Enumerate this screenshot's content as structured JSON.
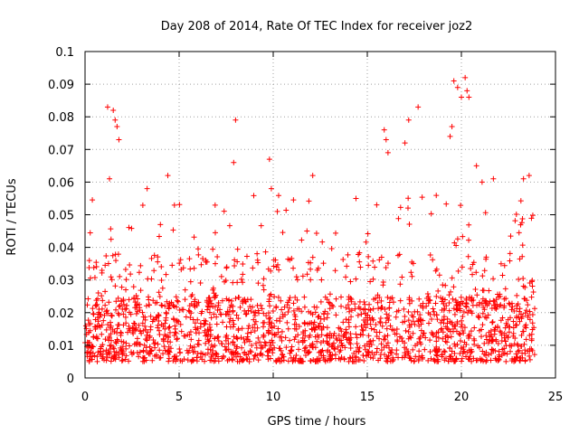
{
  "chart_data": {
    "type": "scatter",
    "title": "Day 208 of 2014, Rate Of TEC Index for receiver joz2",
    "xlabel": "GPS time / hours",
    "ylabel": "ROTI / TECUs",
    "xlim": [
      0,
      25
    ],
    "ylim": [
      0,
      0.1
    ],
    "x_ticks": [
      0,
      5,
      10,
      15,
      20,
      25
    ],
    "y_ticks": [
      0,
      0.01,
      0.02,
      0.03,
      0.04,
      0.05,
      0.06,
      0.07,
      0.08,
      0.09,
      0.1
    ],
    "x_tick_labels": [
      "0",
      "5",
      "10",
      "15",
      "20",
      "25"
    ],
    "y_tick_labels": [
      "0",
      "0.01",
      "0.02",
      "0.03",
      "0.04",
      "0.05",
      "0.06",
      "0.07",
      "0.08",
      "0.09",
      "0.1"
    ],
    "grid": true,
    "marker": "plus",
    "color": "#ff0000",
    "series": [
      {
        "name": "ROTI",
        "x_range": [
          0,
          23.9
        ],
        "typical_range": [
          0.005,
          0.025
        ],
        "highlights": [
          {
            "x": 1.2,
            "y": 0.083
          },
          {
            "x": 1.5,
            "y": 0.082
          },
          {
            "x": 1.6,
            "y": 0.079
          },
          {
            "x": 1.7,
            "y": 0.077
          },
          {
            "x": 1.8,
            "y": 0.073
          },
          {
            "x": 1.3,
            "y": 0.061
          },
          {
            "x": 3.3,
            "y": 0.058
          },
          {
            "x": 4.4,
            "y": 0.062
          },
          {
            "x": 8.0,
            "y": 0.079
          },
          {
            "x": 7.9,
            "y": 0.066
          },
          {
            "x": 9.8,
            "y": 0.067
          },
          {
            "x": 9.9,
            "y": 0.058
          },
          {
            "x": 12.1,
            "y": 0.062
          },
          {
            "x": 15.9,
            "y": 0.076
          },
          {
            "x": 16.0,
            "y": 0.073
          },
          {
            "x": 16.1,
            "y": 0.069
          },
          {
            "x": 17.0,
            "y": 0.072
          },
          {
            "x": 17.2,
            "y": 0.079
          },
          {
            "x": 17.7,
            "y": 0.083
          },
          {
            "x": 19.6,
            "y": 0.091
          },
          {
            "x": 19.8,
            "y": 0.089
          },
          {
            "x": 20.0,
            "y": 0.086
          },
          {
            "x": 20.2,
            "y": 0.092
          },
          {
            "x": 20.3,
            "y": 0.088
          },
          {
            "x": 20.4,
            "y": 0.086
          },
          {
            "x": 19.5,
            "y": 0.077
          },
          {
            "x": 19.4,
            "y": 0.074
          },
          {
            "x": 20.8,
            "y": 0.065
          },
          {
            "x": 21.1,
            "y": 0.06
          },
          {
            "x": 21.7,
            "y": 0.061
          },
          {
            "x": 23.3,
            "y": 0.061
          },
          {
            "x": 23.6,
            "y": 0.062
          },
          {
            "x": 15.5,
            "y": 0.053
          }
        ]
      }
    ]
  }
}
